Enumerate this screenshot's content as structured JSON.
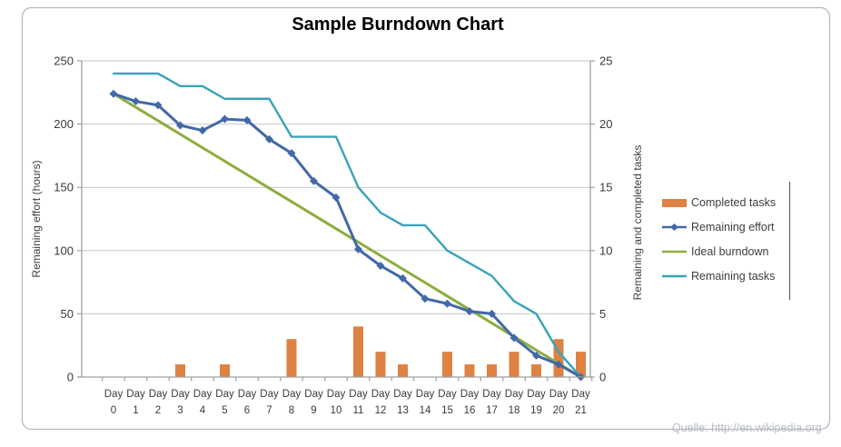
{
  "title": "Sample Burndown Chart",
  "caption": "Quelle: http://en.wikipedia.org",
  "axes": {
    "left": {
      "title": "Remaining effort (hours)",
      "ticks": [
        0,
        50,
        100,
        150,
        200,
        250
      ],
      "max": 250
    },
    "right": {
      "title": "Remaining and completed tasks",
      "ticks": [
        0,
        5,
        10,
        15,
        20,
        25
      ],
      "max": 25
    }
  },
  "legend": [
    {
      "label": "Completed tasks",
      "swatch": "bar",
      "color": "#dd8243"
    },
    {
      "label": "Remaining effort",
      "swatch": "line-diamond",
      "color": "#4169a8"
    },
    {
      "label": "Ideal burndown",
      "swatch": "line",
      "color": "#8dad3e"
    },
    {
      "label": "Remaining tasks",
      "swatch": "line",
      "color": "#3aa2ba"
    }
  ],
  "chart_data": {
    "type": "line+bar",
    "title": "Sample Burndown Chart",
    "categories": [
      "Day 0",
      "Day 1",
      "Day 2",
      "Day 3",
      "Day 4",
      "Day 5",
      "Day 6",
      "Day 7",
      "Day 8",
      "Day 9",
      "Day 10",
      "Day 11",
      "Day 12",
      "Day 13",
      "Day 14",
      "Day 15",
      "Day 16",
      "Day 17",
      "Day 18",
      "Day 19",
      "Day 20",
      "Day 21"
    ],
    "left_ylabel": "Remaining effort (hours)",
    "right_ylabel": "Remaining and completed tasks",
    "left_ylim": [
      0,
      250
    ],
    "right_ylim": [
      0,
      25
    ],
    "grid": true,
    "legend_position": "right",
    "series": [
      {
        "name": "Completed tasks",
        "type": "bar",
        "axis": "right",
        "color": "#dd8243",
        "values": [
          0,
          0,
          0,
          1,
          0,
          1,
          0,
          0,
          3,
          0,
          0,
          4,
          2,
          1,
          0,
          2,
          1,
          1,
          2,
          1,
          3,
          2
        ]
      },
      {
        "name": "Ideal burndown",
        "type": "line",
        "axis": "left",
        "color": "#8dad3e",
        "values": [
          224,
          213.3,
          202.7,
          192,
          181.3,
          170.7,
          160,
          149.3,
          138.7,
          128,
          117.3,
          106.7,
          96,
          85.3,
          74.7,
          64,
          53.3,
          42.7,
          32,
          21.3,
          10.7,
          0
        ]
      },
      {
        "name": "Remaining tasks",
        "type": "line",
        "axis": "right",
        "color": "#3aa2ba",
        "values": [
          24,
          24,
          24,
          23,
          23,
          22,
          22,
          22,
          19,
          19,
          19,
          15,
          13,
          12,
          12,
          10,
          9,
          8,
          6,
          5,
          2,
          0
        ]
      },
      {
        "name": "Remaining effort",
        "type": "line",
        "axis": "left",
        "color": "#4169a8",
        "marker": "diamond",
        "values": [
          224,
          218,
          215,
          199,
          195,
          204,
          203,
          188,
          177,
          155,
          142,
          101,
          88,
          78,
          62,
          58,
          52,
          50,
          31,
          17,
          10,
          0
        ]
      }
    ]
  },
  "colors": {
    "grid": "#c9c9c9",
    "axis": "#a0a0a0",
    "tick_text": "#3a3a3a",
    "border": "#b3b6bd",
    "frame_line": "#5c6270"
  }
}
